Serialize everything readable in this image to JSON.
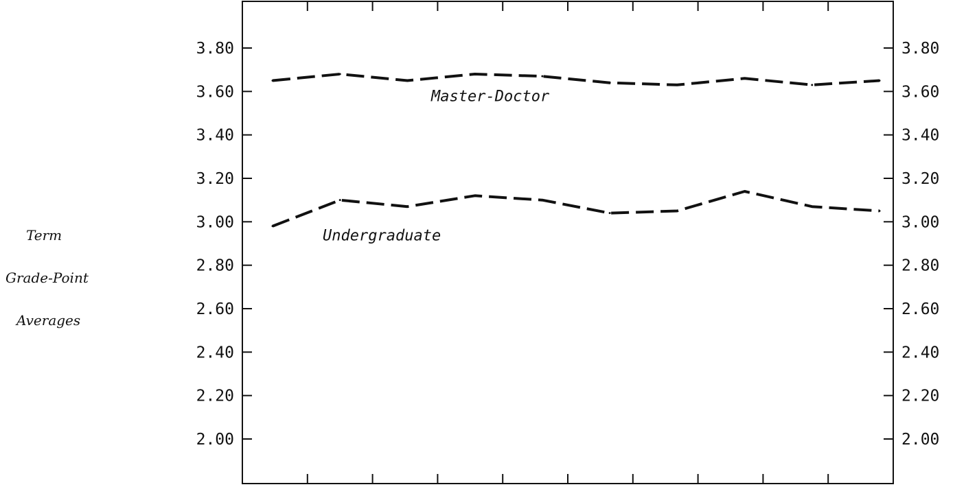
{
  "chart_data": {
    "type": "line",
    "title": "",
    "xlabel": "",
    "ylabel": [
      "Term",
      "Grade-Point",
      "Averages"
    ],
    "ylim": [
      1.8,
      4.0
    ],
    "yticks": [
      "2.00",
      "2.20",
      "2.40",
      "2.60",
      "2.80",
      "3.00",
      "3.20",
      "3.40",
      "3.60",
      "3.80"
    ],
    "x_tick_count": 10,
    "grid": false,
    "legend": "none",
    "line_style": "dashed",
    "line_color": "#111111",
    "series": [
      {
        "name": "Master-Doctor",
        "x": [
          1,
          2,
          3,
          4,
          5,
          6,
          7,
          8,
          9,
          10
        ],
        "values": [
          3.65,
          3.68,
          3.65,
          3.68,
          3.67,
          3.64,
          3.63,
          3.66,
          3.63,
          3.65
        ]
      },
      {
        "name": "Undergraduate",
        "x": [
          1,
          2,
          3,
          4,
          5,
          6,
          7,
          8,
          9,
          10
        ],
        "values": [
          2.98,
          3.1,
          3.07,
          3.12,
          3.1,
          3.04,
          3.05,
          3.14,
          3.07,
          3.05
        ]
      }
    ]
  }
}
